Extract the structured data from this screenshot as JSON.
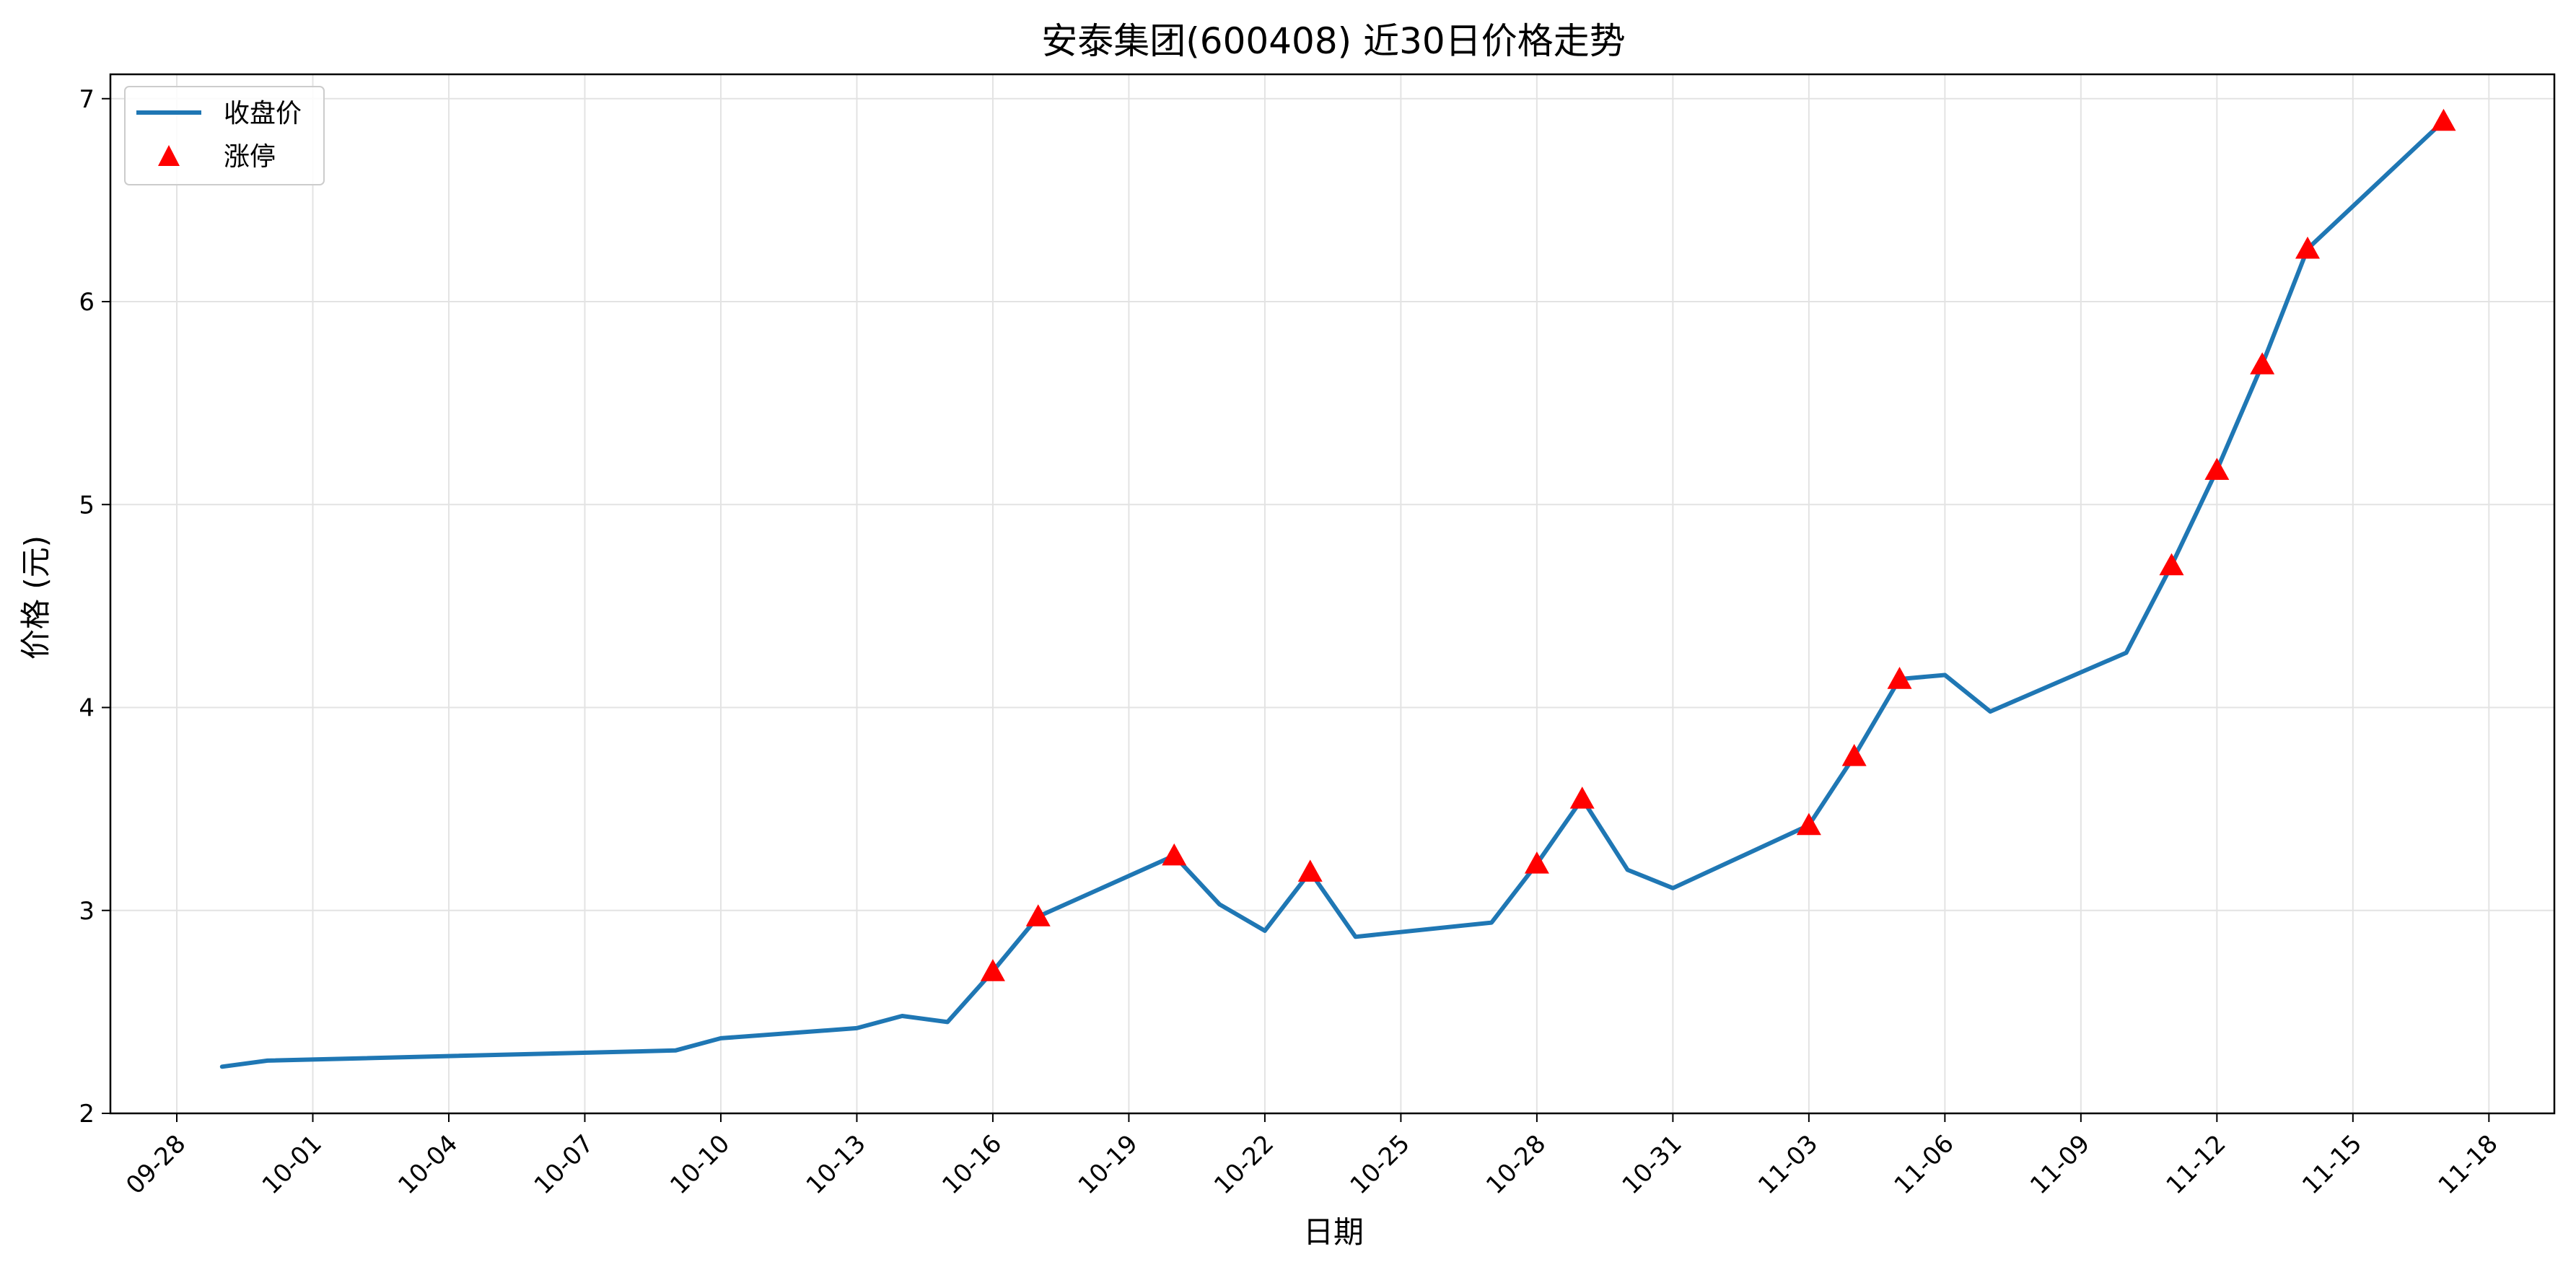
{
  "chart_data": {
    "type": "line",
    "title": "安泰集团(600408) 近30日价格走势",
    "xlabel": "日期",
    "ylabel": "价格 (元)",
    "x_tick_labels": [
      "09-28",
      "10-01",
      "10-04",
      "10-07",
      "10-10",
      "10-13",
      "10-16",
      "10-19",
      "10-22",
      "10-25",
      "10-28",
      "10-31",
      "11-03",
      "11-06",
      "11-09",
      "11-12",
      "11-15",
      "11-18"
    ],
    "y_ticks": [
      2,
      3,
      4,
      5,
      6,
      7
    ],
    "ylim": [
      2.0,
      7.12
    ],
    "grid": true,
    "legend_position": "top-left",
    "series": [
      {
        "name": "收盘价",
        "color": "#1f77b4",
        "marker": "line",
        "points": [
          {
            "date": "09-29",
            "value": 2.23
          },
          {
            "date": "09-30",
            "value": 2.26
          },
          {
            "date": "10-09",
            "value": 2.31
          },
          {
            "date": "10-10",
            "value": 2.37
          },
          {
            "date": "10-13",
            "value": 2.42
          },
          {
            "date": "10-14",
            "value": 2.48
          },
          {
            "date": "10-15",
            "value": 2.45
          },
          {
            "date": "10-16",
            "value": 2.7
          },
          {
            "date": "10-17",
            "value": 2.97
          },
          {
            "date": "10-20",
            "value": 3.27
          },
          {
            "date": "10-21",
            "value": 3.03
          },
          {
            "date": "10-22",
            "value": 2.9
          },
          {
            "date": "10-23",
            "value": 3.19
          },
          {
            "date": "10-24",
            "value": 2.87
          },
          {
            "date": "10-27",
            "value": 2.94
          },
          {
            "date": "10-28",
            "value": 3.23
          },
          {
            "date": "10-29",
            "value": 3.55
          },
          {
            "date": "10-30",
            "value": 3.2
          },
          {
            "date": "10-31",
            "value": 3.11
          },
          {
            "date": "11-03",
            "value": 3.42
          },
          {
            "date": "11-04",
            "value": 3.76
          },
          {
            "date": "11-05",
            "value": 4.14
          },
          {
            "date": "11-06",
            "value": 4.16
          },
          {
            "date": "11-07",
            "value": 3.98
          },
          {
            "date": "11-10",
            "value": 4.27
          },
          {
            "date": "11-11",
            "value": 4.7
          },
          {
            "date": "11-12",
            "value": 5.17
          },
          {
            "date": "11-13",
            "value": 5.69
          },
          {
            "date": "11-14",
            "value": 6.26
          },
          {
            "date": "11-17",
            "value": 6.89
          }
        ]
      },
      {
        "name": "涨停",
        "color": "#ff0000",
        "marker": "triangle",
        "points": [
          {
            "date": "10-16",
            "value": 2.7
          },
          {
            "date": "10-17",
            "value": 2.97
          },
          {
            "date": "10-20",
            "value": 3.27
          },
          {
            "date": "10-23",
            "value": 3.19
          },
          {
            "date": "10-28",
            "value": 3.23
          },
          {
            "date": "10-29",
            "value": 3.55
          },
          {
            "date": "11-03",
            "value": 3.42
          },
          {
            "date": "11-04",
            "value": 3.76
          },
          {
            "date": "11-05",
            "value": 4.14
          },
          {
            "date": "11-11",
            "value": 4.7
          },
          {
            "date": "11-12",
            "value": 5.17
          },
          {
            "date": "11-13",
            "value": 5.69
          },
          {
            "date": "11-14",
            "value": 6.26
          },
          {
            "date": "11-17",
            "value": 6.89
          }
        ]
      }
    ]
  }
}
